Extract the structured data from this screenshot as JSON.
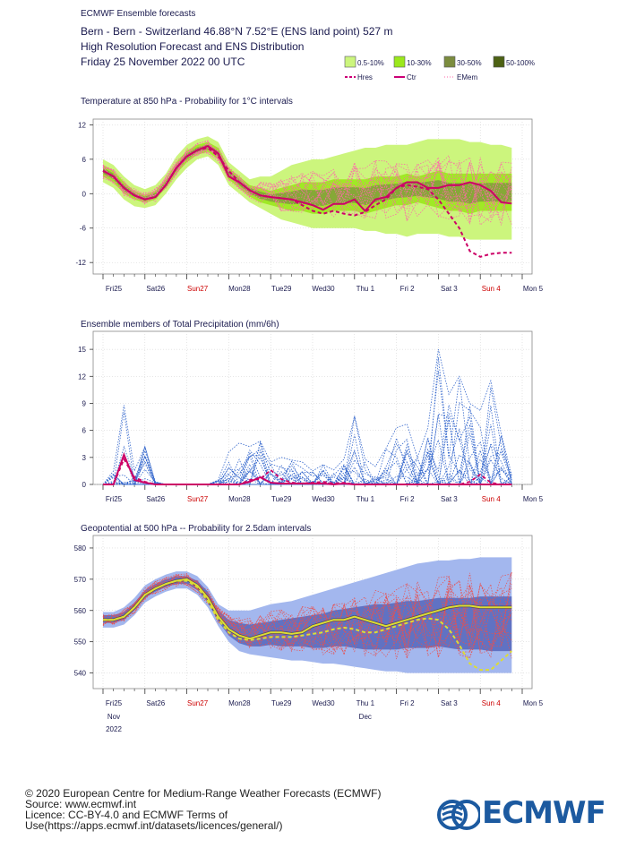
{
  "header": {
    "subtitle": "ECMWF Ensemble forecasts",
    "line1": "Bern - Bern - Switzerland 46.88°N 7.52°E (ENS land point) 527 m",
    "line2": "High Resolution Forecast and ENS Distribution",
    "line3": "Friday 25 November 2022 00 UTC"
  },
  "legend": {
    "prob_bins": [
      {
        "label": "0.5-10%",
        "color": "#ccf57d"
      },
      {
        "label": "10-30%",
        "color": "#9be81c"
      },
      {
        "label": "30-50%",
        "color": "#7b8c3e"
      },
      {
        "label": "50-100%",
        "color": "#4d6214"
      }
    ],
    "lines": [
      {
        "label": "Hres",
        "color": "#cc0077",
        "style": "dashed"
      },
      {
        "label": "Ctr",
        "color": "#cc0077",
        "style": "solid"
      },
      {
        "label": "EMem",
        "color": "#ff66aa",
        "style": "dotted"
      }
    ]
  },
  "colors": {
    "t_band_outer": "#ccf57d",
    "t_band_mid": "#9be81c",
    "t_band_inner": "#7b8c3e",
    "t_band_core": "#4d6214",
    "t_members": "#ff66aa",
    "t_main": "#cc0066",
    "p_members": "#3366cc",
    "p_main": "#cc0066",
    "g_band_outer": "#a3b7ee",
    "g_band_inner": "#5566bb",
    "g_members": "#e85050",
    "g_main": "#dddd33",
    "weekend": "#cc0000",
    "weekday": "#1a1a4e",
    "logo": "#1c5aa0"
  },
  "x_axis": {
    "days": [
      {
        "label": "Fri25",
        "weekend": false
      },
      {
        "label": "Sat26",
        "weekend": false
      },
      {
        "label": "Sun27",
        "weekend": true
      },
      {
        "label": "Mon28",
        "weekend": false
      },
      {
        "label": "Tue29",
        "weekend": false
      },
      {
        "label": "Wed30",
        "weekend": false
      },
      {
        "label": "Thu 1",
        "weekend": false
      },
      {
        "label": "Fri 2",
        "weekend": false
      },
      {
        "label": "Sat 3",
        "weekend": false
      },
      {
        "label": "Sun 4",
        "weekend": true
      },
      {
        "label": "Mon 5",
        "weekend": false
      }
    ],
    "month_labels": [
      {
        "label": "Nov",
        "day_index": 0
      },
      {
        "label": "Dec",
        "day_index": 6
      }
    ],
    "year_label": "2022"
  },
  "chart_data": [
    {
      "id": "temperature",
      "type": "line",
      "title": "Temperature at 850 hPa - Probability for 1°C intervals",
      "y_ticks": [
        12,
        6,
        0,
        -6,
        -12
      ],
      "ylim": [
        -14,
        13
      ],
      "x": [
        0,
        0.25,
        0.5,
        0.75,
        1,
        1.25,
        1.5,
        1.75,
        2,
        2.25,
        2.5,
        2.75,
        3,
        3.25,
        3.5,
        3.75,
        4,
        4.25,
        4.5,
        4.75,
        5,
        5.25,
        5.5,
        5.75,
        6,
        6.25,
        6.5,
        6.75,
        7,
        7.25,
        7.5,
        7.75,
        8,
        8.25,
        8.5,
        8.75,
        9,
        9.25,
        9.5,
        9.75
      ],
      "ctr": [
        4,
        3,
        1,
        -0.3,
        -1,
        -0.6,
        1.5,
        4.5,
        6.5,
        7.6,
        8.3,
        7,
        3,
        2,
        0.6,
        -0.3,
        -0.6,
        -0.8,
        -1,
        -1.5,
        -2,
        -2.8,
        -1.8,
        -1.8,
        -1,
        -3,
        -1,
        -0.6,
        1,
        2,
        2,
        1,
        1,
        1.5,
        1.5,
        2,
        1.5,
        0.5,
        -1.5,
        -1.7
      ],
      "hres": [
        4,
        3,
        1,
        -0.3,
        -1,
        -0.6,
        1.5,
        4.5,
        6.5,
        7.6,
        8,
        6.5,
        4,
        2,
        0.6,
        -0.3,
        -0.6,
        -0.8,
        -1,
        -2,
        -3,
        -3.5,
        -3,
        -3.5,
        -3.8,
        -3.2,
        -2,
        -1,
        1,
        1.5,
        1.2,
        0.8,
        -1,
        -3.5,
        -6,
        -10,
        -11,
        -10.5,
        -10.3,
        -10.3
      ],
      "band_inner": [
        [
          3,
          5
        ],
        [
          2,
          4
        ],
        [
          0,
          2
        ],
        [
          -1,
          0.5
        ],
        [
          -1.6,
          -0.2
        ],
        [
          -1,
          0.5
        ],
        [
          1,
          2.5
        ],
        [
          3.5,
          5.5
        ],
        [
          5.5,
          7.5
        ],
        [
          6.8,
          8.5
        ],
        [
          7.3,
          9
        ],
        [
          6,
          8
        ],
        [
          2.5,
          4.5
        ],
        [
          1,
          3
        ],
        [
          -0.5,
          1.5
        ],
        [
          -1.5,
          1
        ],
        [
          -2,
          0.5
        ],
        [
          -2.5,
          1
        ],
        [
          -3,
          1.5
        ],
        [
          -3,
          2
        ],
        [
          -3.5,
          2
        ],
        [
          -3.5,
          2
        ],
        [
          -3,
          2.5
        ],
        [
          -3,
          2.5
        ],
        [
          -3,
          2.5
        ],
        [
          -3.5,
          2.5
        ],
        [
          -3,
          3
        ],
        [
          -2.5,
          3
        ],
        [
          -2,
          3
        ],
        [
          -2,
          3.5
        ],
        [
          -1.5,
          3
        ],
        [
          -2,
          3.5
        ],
        [
          -2.5,
          4
        ],
        [
          -3,
          3.5
        ],
        [
          -3,
          3.5
        ],
        [
          -3.5,
          3.5
        ],
        [
          -3,
          3.5
        ],
        [
          -3,
          3.5
        ],
        [
          -3,
          3.5
        ],
        [
          -3,
          3.5
        ]
      ],
      "band_outer": [
        [
          2,
          6
        ],
        [
          1,
          5
        ],
        [
          -1,
          3
        ],
        [
          -2.2,
          1.5
        ],
        [
          -2.5,
          0.8
        ],
        [
          -2,
          1.5
        ],
        [
          0,
          3.5
        ],
        [
          2.5,
          6.5
        ],
        [
          4.5,
          8.5
        ],
        [
          6,
          9.5
        ],
        [
          6.5,
          10
        ],
        [
          5,
          9
        ],
        [
          1.5,
          5.5
        ],
        [
          0,
          4
        ],
        [
          -1.5,
          2.5
        ],
        [
          -2.5,
          3
        ],
        [
          -3.5,
          3
        ],
        [
          -4.5,
          4
        ],
        [
          -5,
          5
        ],
        [
          -5.5,
          5.5
        ],
        [
          -6,
          6
        ],
        [
          -6,
          6
        ],
        [
          -6,
          6.5
        ],
        [
          -6,
          7
        ],
        [
          -6,
          7.5
        ],
        [
          -6.5,
          8
        ],
        [
          -6.5,
          8
        ],
        [
          -7,
          8.5
        ],
        [
          -7,
          8.5
        ],
        [
          -7.5,
          8.5
        ],
        [
          -7,
          9
        ],
        [
          -7,
          9.5
        ],
        [
          -7,
          9.5
        ],
        [
          -7.5,
          9.5
        ],
        [
          -7.5,
          9.5
        ],
        [
          -8,
          9
        ],
        [
          -8,
          9
        ],
        [
          -8,
          8.5
        ],
        [
          -8,
          8.5
        ],
        [
          -8,
          8
        ]
      ]
    },
    {
      "id": "precipitation",
      "type": "line",
      "title": "Ensemble members of Total Precipitation (mm/6h)",
      "y_ticks": [
        15,
        12,
        9,
        6,
        3,
        0
      ],
      "ylim": [
        0,
        17
      ],
      "x": [
        0,
        0.25,
        0.5,
        0.75,
        1,
        1.25,
        1.5,
        1.75,
        2,
        2.25,
        2.5,
        2.75,
        3,
        3.25,
        3.5,
        3.75,
        4,
        4.25,
        4.5,
        4.75,
        5,
        5.25,
        5.5,
        5.75,
        6,
        6.25,
        6.5,
        6.75,
        7,
        7.25,
        7.5,
        7.75,
        8,
        8.25,
        8.5,
        8.75,
        9,
        9.25,
        9.5,
        9.75
      ],
      "ctr": [
        0,
        0,
        3.3,
        0.5,
        0.2,
        0,
        0,
        0,
        0,
        0,
        0,
        0,
        0,
        0,
        0.3,
        0.8,
        0.2,
        0.1,
        0.1,
        0.1,
        0.1,
        0.1,
        0,
        0.1,
        0,
        0,
        0,
        0,
        0,
        0,
        0,
        0,
        0,
        0,
        0,
        0,
        0,
        0,
        0,
        0
      ],
      "hres": [
        0,
        0,
        2.8,
        0.8,
        0.3,
        0,
        0,
        0,
        0,
        0,
        0,
        0,
        0,
        0,
        0.5,
        0.6,
        1.6,
        0.6,
        0.2,
        0.1,
        0.2,
        0.3,
        0.1,
        0.2,
        0,
        0,
        0,
        0,
        0,
        0,
        0,
        0,
        0,
        0,
        0,
        0.3,
        1.1,
        0.2,
        0,
        0
      ],
      "members_max": [
        0,
        1.5,
        8.8,
        1.5,
        4.2,
        0.3,
        0,
        0,
        0,
        0,
        0,
        0.5,
        3.6,
        4.6,
        4.2,
        4.8,
        2.5,
        3,
        2.7,
        2.5,
        1.5,
        2.2,
        1.6,
        2.8,
        7.6,
        2.8,
        2,
        4,
        6.3,
        6.7,
        3,
        6.3,
        15,
        10,
        12,
        9,
        8.2,
        11.5,
        5.6,
        1
      ]
    },
    {
      "id": "geopotential",
      "type": "line",
      "title": "Geopotential at 500 hPa -- Probability for 2.5dam intervals",
      "y_ticks": [
        580,
        570,
        560,
        550,
        540
      ],
      "ylim": [
        535,
        584
      ],
      "x": [
        0,
        0.25,
        0.5,
        0.75,
        1,
        1.25,
        1.5,
        1.75,
        2,
        2.25,
        2.5,
        2.75,
        3,
        3.25,
        3.5,
        3.75,
        4,
        4.25,
        4.5,
        4.75,
        5,
        5.25,
        5.5,
        5.75,
        6,
        6.25,
        6.5,
        6.75,
        7,
        7.25,
        7.5,
        7.75,
        8,
        8.25,
        8.5,
        8.75,
        9,
        9.25,
        9.5,
        9.75
      ],
      "ctr": [
        557,
        557,
        558,
        561,
        565,
        567,
        568.5,
        569.5,
        570,
        568,
        564,
        558,
        554,
        552,
        551,
        552,
        553,
        553,
        552.5,
        553,
        555,
        556,
        557,
        557,
        558,
        557,
        556,
        555,
        556,
        557,
        558,
        559,
        560,
        561,
        561.5,
        561.5,
        561,
        561,
        561,
        561
      ],
      "hres": [
        557,
        557,
        558,
        561,
        565,
        567,
        568.5,
        569.5,
        569.5,
        567.5,
        563,
        557,
        553,
        551,
        550.5,
        551,
        551.5,
        551.5,
        551.5,
        552,
        552.5,
        553,
        554,
        554.5,
        554,
        553,
        553,
        554,
        555,
        556,
        557,
        557.5,
        557,
        554,
        549,
        543,
        541,
        541,
        544,
        547
      ],
      "band_inner": [
        [
          556,
          558.5
        ],
        [
          556,
          558.5
        ],
        [
          557,
          559.5
        ],
        [
          560,
          562.5
        ],
        [
          564,
          566.5
        ],
        [
          566,
          568.5
        ],
        [
          567.5,
          570
        ],
        [
          568.5,
          571
        ],
        [
          568.5,
          571
        ],
        [
          566.5,
          569.5
        ],
        [
          562.5,
          566
        ],
        [
          556.5,
          560
        ],
        [
          552,
          557
        ],
        [
          549.5,
          556
        ],
        [
          548.5,
          555.5
        ],
        [
          548.5,
          556
        ],
        [
          549,
          556.5
        ],
        [
          548.5,
          557
        ],
        [
          548.5,
          557.5
        ],
        [
          548.5,
          558
        ],
        [
          548,
          558.5
        ],
        [
          548,
          559
        ],
        [
          548.5,
          560
        ],
        [
          548.5,
          560.5
        ],
        [
          548,
          561
        ],
        [
          547.5,
          561.5
        ],
        [
          547.5,
          562
        ],
        [
          547.5,
          562
        ],
        [
          547.5,
          562.5
        ],
        [
          548,
          563
        ],
        [
          548,
          563
        ],
        [
          548,
          563.5
        ],
        [
          548.5,
          564
        ],
        [
          548,
          564
        ],
        [
          547.5,
          564
        ],
        [
          547.5,
          564
        ],
        [
          547.5,
          564.5
        ],
        [
          547,
          564.5
        ],
        [
          547,
          564.5
        ],
        [
          547,
          564.5
        ]
      ],
      "band_outer": [
        [
          554.5,
          559.5
        ],
        [
          554.5,
          559.5
        ],
        [
          555.5,
          561
        ],
        [
          558.5,
          564
        ],
        [
          562.5,
          568
        ],
        [
          564.5,
          570
        ],
        [
          566,
          571.5
        ],
        [
          567,
          572.5
        ],
        [
          567,
          572.5
        ],
        [
          565,
          571
        ],
        [
          561,
          567.5
        ],
        [
          555,
          562
        ],
        [
          550,
          560
        ],
        [
          547,
          560
        ],
        [
          546,
          560
        ],
        [
          545.5,
          561
        ],
        [
          545,
          562
        ],
        [
          544.5,
          562.5
        ],
        [
          544,
          563
        ],
        [
          544,
          564
        ],
        [
          543.5,
          565
        ],
        [
          543,
          566
        ],
        [
          543,
          567
        ],
        [
          542.5,
          568
        ],
        [
          542,
          569
        ],
        [
          541.5,
          570
        ],
        [
          541,
          571
        ],
        [
          540.5,
          572
        ],
        [
          540.5,
          573
        ],
        [
          540,
          574
        ],
        [
          540,
          575
        ],
        [
          540,
          575.5
        ],
        [
          540,
          576
        ],
        [
          540,
          576
        ],
        [
          540,
          576.5
        ],
        [
          540,
          576.5
        ],
        [
          540,
          577
        ],
        [
          540,
          577
        ],
        [
          540,
          577
        ],
        [
          540,
          577
        ]
      ]
    }
  ],
  "footer": {
    "line1": "© 2020 European Centre for Medium-Range Weather Forecasts (ECMWF)",
    "line2": "Source: www.ecmwf.int",
    "line3": "Licence: CC-BY-4.0 and ECMWF Terms of Use(https://apps.ecmwf.int/datasets/licences/general/)",
    "logo_text": "ECMWF"
  }
}
